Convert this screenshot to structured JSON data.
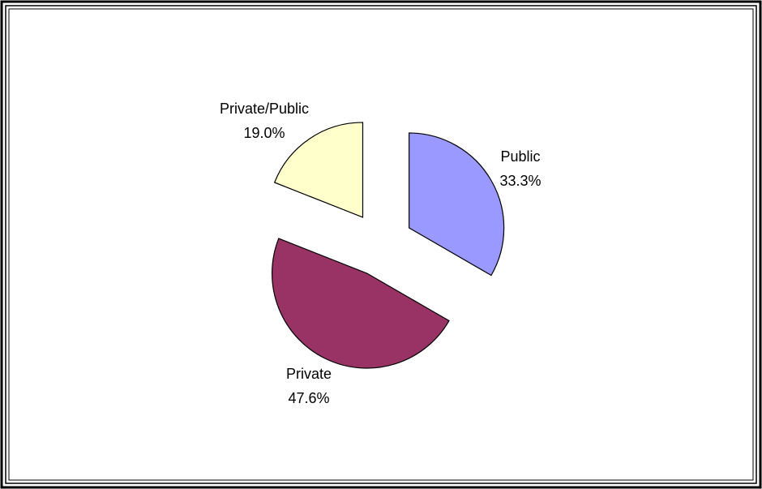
{
  "chart_data": {
    "type": "pie",
    "exploded": true,
    "slices": [
      {
        "label": "Public",
        "value": 33.3,
        "value_label": "33.3%",
        "color": "#9999ff"
      },
      {
        "label": "Private",
        "value": 47.6,
        "value_label": "47.6%",
        "color": "#993366"
      },
      {
        "label": "Private/Public",
        "value": 19.0,
        "value_label": "19.0%",
        "color": "#ffffcc"
      }
    ],
    "start_angle_deg": 0,
    "direction": "clockwise",
    "legend": "none",
    "border_color": "#000000"
  }
}
